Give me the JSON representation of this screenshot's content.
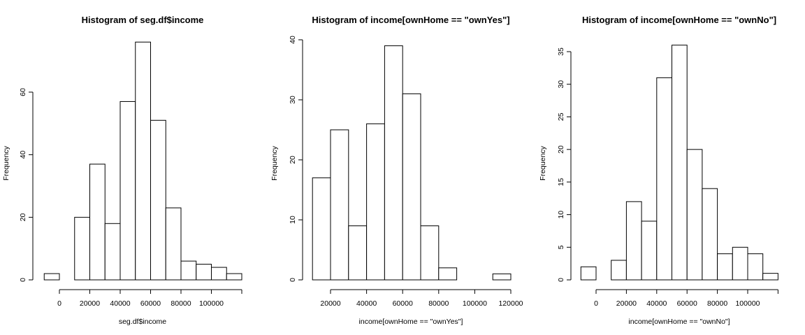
{
  "chart_data": [
    {
      "type": "bar",
      "title": "Histogram of seg.df$income",
      "xlabel": "seg.df$income",
      "ylabel": "Frequency",
      "bin_edges": [
        -10000,
        0,
        10000,
        20000,
        30000,
        40000,
        50000,
        60000,
        70000,
        80000,
        90000,
        100000,
        110000,
        120000
      ],
      "values": [
        2,
        0,
        20,
        37,
        18,
        57,
        76,
        51,
        23,
        6,
        5,
        4,
        2
      ],
      "xlim": [
        0,
        120000
      ],
      "ylim": [
        0,
        76
      ],
      "x_ticks": [
        0,
        20000,
        40000,
        60000,
        80000,
        100000
      ],
      "x_tick_labels": [
        "0",
        "20000",
        "40000",
        "60000",
        "80000",
        "100000"
      ],
      "y_ticks": [
        0,
        20,
        40,
        60
      ],
      "y_tick_labels": [
        "0",
        "20",
        "40",
        "60"
      ]
    },
    {
      "type": "bar",
      "title": "Histogram of income[ownHome == \"ownYes\"]",
      "xlabel": "income[ownHome == \"ownYes\"]",
      "ylabel": "Frequency",
      "bin_edges": [
        10000,
        20000,
        30000,
        40000,
        50000,
        60000,
        70000,
        80000,
        90000,
        100000,
        110000,
        120000
      ],
      "values": [
        17,
        25,
        9,
        26,
        39,
        31,
        9,
        2,
        0,
        0,
        1
      ],
      "xlim": [
        20000,
        120000
      ],
      "ylim": [
        0,
        40
      ],
      "x_ticks": [
        20000,
        40000,
        60000,
        80000,
        100000,
        120000
      ],
      "x_tick_labels": [
        "20000",
        "40000",
        "60000",
        "80000",
        "100000",
        "120000"
      ],
      "y_ticks": [
        0,
        10,
        20,
        30,
        40
      ],
      "y_tick_labels": [
        "0",
        "10",
        "20",
        "30",
        "40"
      ]
    },
    {
      "type": "bar",
      "title": "Histogram of income[ownHome == \"ownNo\"]",
      "xlabel": "income[ownHome == \"ownNo\"]",
      "ylabel": "Frequency",
      "bin_edges": [
        -10000,
        0,
        10000,
        20000,
        30000,
        40000,
        50000,
        60000,
        70000,
        80000,
        90000,
        100000,
        110000,
        120000
      ],
      "values": [
        2,
        0,
        3,
        12,
        9,
        31,
        36,
        20,
        14,
        4,
        5,
        4,
        1
      ],
      "xlim": [
        0,
        120000
      ],
      "ylim": [
        0,
        36
      ],
      "x_ticks": [
        0,
        20000,
        40000,
        60000,
        80000,
        100000
      ],
      "x_tick_labels": [
        "0",
        "20000",
        "40000",
        "60000",
        "80000",
        "100000"
      ],
      "y_ticks": [
        0,
        5,
        10,
        15,
        20,
        25,
        30,
        35
      ],
      "y_tick_labels": [
        "0",
        "5",
        "10",
        "15",
        "20",
        "25",
        "30",
        "35"
      ]
    }
  ]
}
